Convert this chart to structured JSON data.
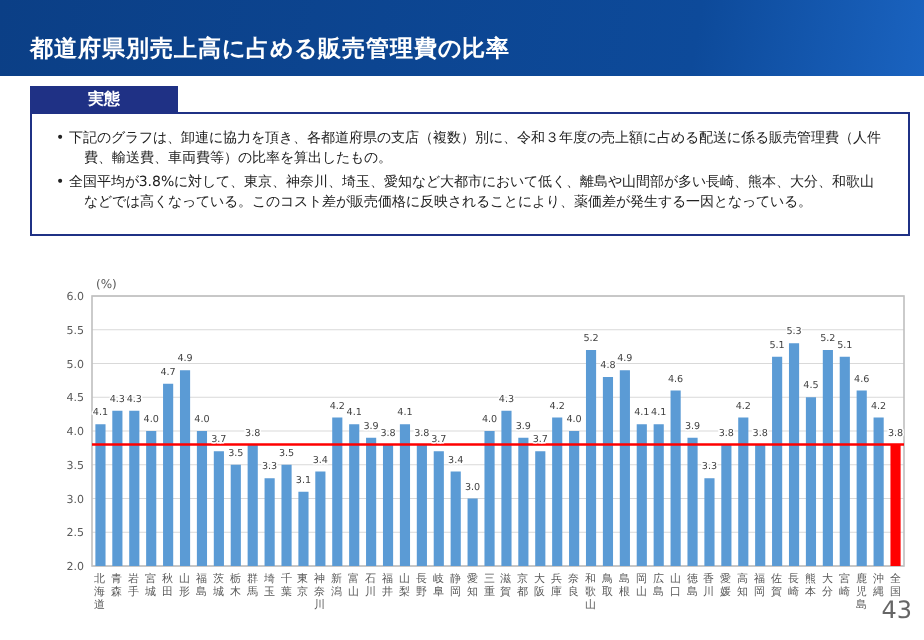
{
  "chart_data": {
    "type": "bar",
    "title": "都道府県別売上高に占める販売管理費の比率",
    "subtitle": "実態",
    "annotations": [
      "• 下記のグラフは、卸連に協力を頂き、各都道府県の支店（複数）別に、令和３年度の売上額に占める配送に係る販売管理費（人件費、輸送費、車両費等）の比率を算出したもの。",
      "• 全国平均が3.8%に対して、東京、神奈川、埼玉、愛知など大都市において低く、離島や山間部が多い長崎、熊本、大分、和歌山などでは高くなっている。このコスト差が販売価格に反映されることにより、薬価差が発生する一因となっている。",
      "43"
    ],
    "ylabel": "(%)",
    "categories": [
      "北海道",
      "青森",
      "岩手",
      "宮城",
      "秋田",
      "山形",
      "福島",
      "茨城",
      "栃木",
      "群馬",
      "埼玉",
      "千葉",
      "東京",
      "神奈川",
      "新潟",
      "富山",
      "石川",
      "福井",
      "山梨",
      "長野",
      "岐阜",
      "静岡",
      "愛知",
      "三重",
      "滋賀",
      "京都",
      "大阪",
      "兵庫",
      "奈良",
      "和歌山",
      "鳥取",
      "島根",
      "岡山",
      "広島",
      "山口",
      "徳島",
      "香川",
      "愛媛",
      "高知",
      "福岡",
      "佐賀",
      "長崎",
      "熊本",
      "大分",
      "宮崎",
      "鹿児島",
      "沖縄",
      "全国"
    ],
    "values": [
      4.1,
      4.3,
      4.3,
      4.0,
      4.7,
      4.9,
      4.0,
      3.7,
      3.5,
      3.8,
      3.3,
      3.5,
      3.1,
      3.4,
      4.2,
      4.1,
      3.9,
      3.8,
      4.1,
      3.8,
      3.7,
      3.4,
      3.0,
      4.0,
      4.3,
      3.9,
      3.7,
      4.2,
      4.0,
      5.2,
      4.8,
      4.9,
      4.1,
      4.1,
      4.6,
      3.9,
      3.3,
      3.8,
      4.2,
      3.8,
      5.1,
      5.3,
      4.5,
      5.2,
      5.1,
      4.6,
      4.2,
      3.8
    ],
    "colors": [
      "#5b9bd5",
      "#5b9bd5",
      "#5b9bd5",
      "#5b9bd5",
      "#5b9bd5",
      "#5b9bd5",
      "#5b9bd5",
      "#5b9bd5",
      "#5b9bd5",
      "#5b9bd5",
      "#5b9bd5",
      "#5b9bd5",
      "#5b9bd5",
      "#5b9bd5",
      "#5b9bd5",
      "#5b9bd5",
      "#5b9bd5",
      "#5b9bd5",
      "#5b9bd5",
      "#5b9bd5",
      "#5b9bd5",
      "#5b9bd5",
      "#5b9bd5",
      "#5b9bd5",
      "#5b9bd5",
      "#5b9bd5",
      "#5b9bd5",
      "#5b9bd5",
      "#5b9bd5",
      "#5b9bd5",
      "#5b9bd5",
      "#5b9bd5",
      "#5b9bd5",
      "#5b9bd5",
      "#5b9bd5",
      "#5b9bd5",
      "#5b9bd5",
      "#5b9bd5",
      "#5b9bd5",
      "#5b9bd5",
      "#5b9bd5",
      "#5b9bd5",
      "#5b9bd5",
      "#5b9bd5",
      "#5b9bd5",
      "#5b9bd5",
      "#5b9bd5",
      "#ff0000"
    ],
    "ylim": [
      2.0,
      6.0
    ],
    "yticks": [
      {
        "value": 2.0,
        "label": "2.0"
      },
      {
        "value": 2.5,
        "label": "2.5"
      },
      {
        "value": 3.0,
        "label": "3.0"
      },
      {
        "value": 3.5,
        "label": "3.5"
      },
      {
        "value": 4.0,
        "label": "4.0"
      },
      {
        "value": 4.5,
        "label": "4.5"
      },
      {
        "value": 5.0,
        "label": "5.0"
      },
      {
        "value": 5.5,
        "label": "5.5"
      },
      {
        "value": 6.0,
        "label": "6.0"
      }
    ],
    "value_labels": [
      "4.1",
      "4.3",
      "4.3",
      "4.0",
      "4.7",
      "4.9",
      "4.0",
      "3.7",
      "3.5",
      "3.8",
      "3.3",
      "3.5",
      "3.1",
      "3.4",
      "4.2",
      "4.1",
      "3.9",
      "3.8",
      "4.1",
      "3.8",
      "3.7",
      "3.4",
      "3.0",
      "4.0",
      "4.3",
      "3.9",
      "3.7",
      "4.2",
      "4.0",
      "5.2",
      "4.8",
      "4.9",
      "4.1",
      "4.1",
      "4.6",
      "3.9",
      "3.3",
      "3.8",
      "4.2",
      "3.8",
      "5.1",
      "5.3",
      "4.5",
      "5.2",
      "5.1",
      "4.6",
      "4.2",
      "3.8"
    ],
    "grid": "y",
    "ref_lines": [
      {
        "axis": "y",
        "value": 3.8,
        "color": "#ff0000"
      }
    ]
  }
}
